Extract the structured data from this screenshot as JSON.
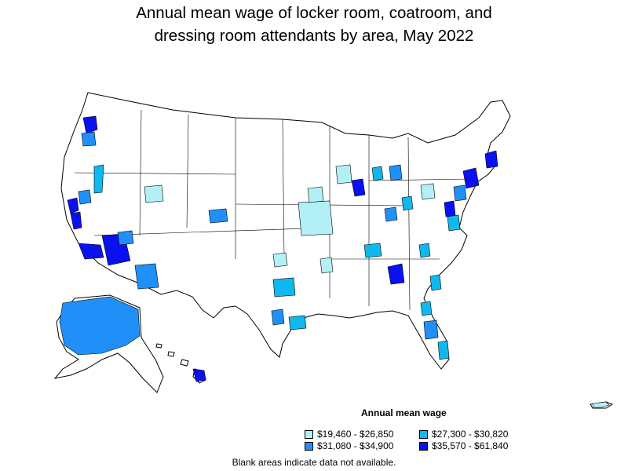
{
  "title": {
    "line1": "Annual mean wage of locker room, coatroom, and",
    "line2": "dressing room attendants by area, May 2022"
  },
  "legend": {
    "title": "Annual mean wage",
    "items": [
      {
        "label": "$19,460 - $26,850",
        "color": "#b3f0f5"
      },
      {
        "label": "$27,300 - $30,820",
        "color": "#10b8f0"
      },
      {
        "label": "$31,080 - $34,900",
        "color": "#2090f8"
      },
      {
        "label": "$35,570 - $61,840",
        "color": "#0a10f0"
      }
    ]
  },
  "note": "Blank areas indicate data not available.",
  "colors": {
    "outline": "#000000",
    "no_data": "#ffffff"
  }
}
